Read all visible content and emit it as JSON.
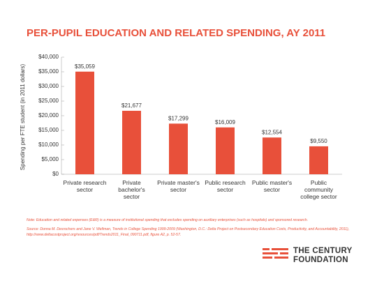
{
  "chart_data": {
    "type": "bar",
    "title": "PER-PUPIL EDUCATION AND RELATED SPENDING, AY 2011",
    "y_label": "Spending per FTE student (in 2011 dollars)",
    "categories": [
      "Private research sector",
      "Private bachelor's sector",
      "Private master's sector",
      "Public research sector",
      "Public master's sector",
      "Public community college sector"
    ],
    "values": [
      35059,
      21677,
      17299,
      16009,
      12554,
      9550
    ],
    "value_labels": [
      "$35,059",
      "$21,677",
      "$17,299",
      "$16,009",
      "$12,554",
      "$9,550"
    ],
    "color": "#e8503a",
    "ylim": [
      0,
      40000
    ],
    "yticks": [
      {
        "value": 0,
        "label": "$0"
      },
      {
        "value": 5000,
        "label": "$5,000"
      },
      {
        "value": 10000,
        "label": "$10,000"
      },
      {
        "value": 15000,
        "label": "$15,000"
      },
      {
        "value": 20000,
        "label": "$20,000"
      },
      {
        "value": 25000,
        "label": "$25,000"
      },
      {
        "value": 30000,
        "label": "$30,000"
      },
      {
        "value": 35000,
        "label": "$35,000"
      },
      {
        "value": 40000,
        "label": "$40,000"
      }
    ],
    "grid": false
  },
  "footer": {
    "note": "Note: Education and related expenses (E&R) is a measure of institutional spending that excludes spending on auxiliary enterprises (such as hospitals) and sponsored research.",
    "source": "Source: Donna M. Desrochers and Jane V. Wellman, Trends in College Spending 1999-2009 (Washington, D.C.: Delta Project on Postsecondary Education Costs, Productivity, and Accountability, 2011), http://www.deltacostproject.org/resources/pdf/Trends2011_Final_090711.pdf, figure A2, p. 52-57.",
    "logo_line1": "THE CENTURY",
    "logo_line2": "FOUNDATION"
  }
}
